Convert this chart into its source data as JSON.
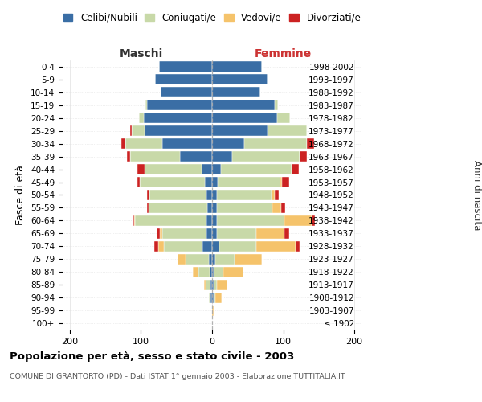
{
  "age_groups": [
    "100+",
    "95-99",
    "90-94",
    "85-89",
    "80-84",
    "75-79",
    "70-74",
    "65-69",
    "60-64",
    "55-59",
    "50-54",
    "45-49",
    "40-44",
    "35-39",
    "30-34",
    "25-29",
    "20-24",
    "15-19",
    "10-14",
    "5-9",
    "0-4"
  ],
  "birth_years": [
    "≤ 1902",
    "1903-1907",
    "1908-1912",
    "1913-1917",
    "1918-1922",
    "1923-1927",
    "1928-1932",
    "1933-1937",
    "1938-1942",
    "1943-1947",
    "1948-1952",
    "1953-1957",
    "1958-1962",
    "1963-1967",
    "1968-1972",
    "1973-1977",
    "1978-1982",
    "1983-1987",
    "1988-1992",
    "1993-1997",
    "1998-2002"
  ],
  "male_celibi": [
    0,
    0,
    2,
    2,
    3,
    5,
    13,
    8,
    8,
    7,
    8,
    10,
    15,
    45,
    70,
    95,
    96,
    92,
    72,
    80,
    75
  ],
  "male_coniugati": [
    0,
    0,
    3,
    7,
    16,
    32,
    55,
    62,
    100,
    82,
    80,
    92,
    80,
    70,
    52,
    18,
    7,
    2,
    0,
    0,
    0
  ],
  "male_vedovi": [
    0,
    0,
    0,
    2,
    8,
    12,
    8,
    3,
    1,
    0,
    0,
    0,
    0,
    0,
    0,
    0,
    0,
    0,
    0,
    0,
    0
  ],
  "male_divorziati": [
    0,
    0,
    0,
    0,
    0,
    0,
    5,
    5,
    2,
    2,
    3,
    3,
    10,
    5,
    6,
    2,
    0,
    0,
    0,
    0,
    0
  ],
  "female_nubili": [
    0,
    0,
    2,
    2,
    2,
    4,
    10,
    7,
    7,
    7,
    7,
    8,
    12,
    28,
    45,
    78,
    92,
    88,
    68,
    78,
    70
  ],
  "female_coniugate": [
    0,
    0,
    3,
    5,
    14,
    28,
    52,
    55,
    95,
    78,
    76,
    88,
    100,
    95,
    88,
    55,
    18,
    5,
    0,
    0,
    0
  ],
  "female_vedove": [
    0,
    2,
    8,
    14,
    28,
    38,
    55,
    40,
    38,
    12,
    5,
    2,
    0,
    0,
    0,
    0,
    0,
    0,
    0,
    0,
    0
  ],
  "female_divorziate": [
    0,
    0,
    0,
    0,
    0,
    0,
    6,
    6,
    4,
    6,
    6,
    10,
    10,
    10,
    10,
    0,
    0,
    0,
    0,
    0,
    0
  ],
  "color_celibi": "#3a6ea5",
  "color_coniugati": "#c8d9a8",
  "color_vedovi": "#f5c36b",
  "color_divorziati": "#cc2222",
  "xlim": 210,
  "xtick_vals": [
    -200,
    -100,
    0,
    100,
    200
  ],
  "title": "Popolazione per età, sesso e stato civile - 2003",
  "subtitle": "COMUNE DI GRANTORTO (PD) - Dati ISTAT 1° gennaio 2003 - Elaborazione TUTTITALIA.IT",
  "ylabel_left": "Fasce di età",
  "ylabel_right": "Anni di nascita",
  "xlabel_maschi": "Maschi",
  "xlabel_femmine": "Femmine",
  "legend_labels": [
    "Celibi/Nubili",
    "Coniugati/e",
    "Vedovi/e",
    "Divorziati/e"
  ],
  "bg_color": "#ffffff",
  "grid_color": "#cccccc"
}
